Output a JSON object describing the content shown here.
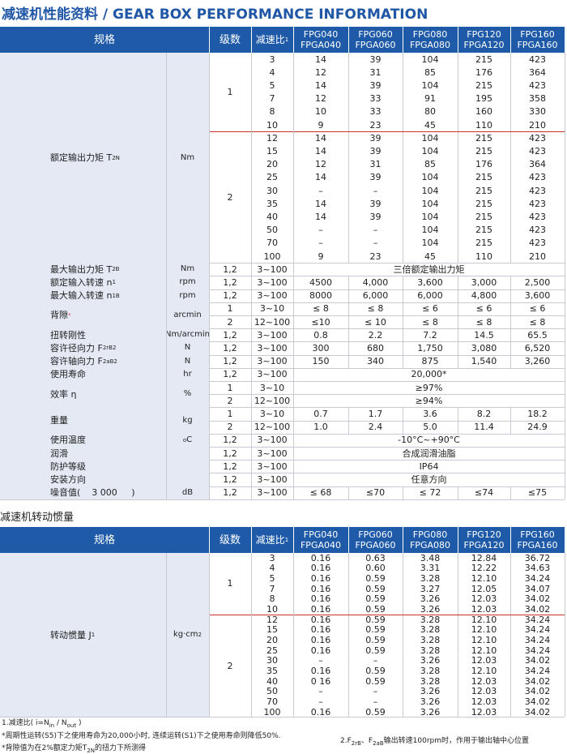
{
  "title": "减速机性能资料 / GEAR BOX PERFORMANCE INFORMATION",
  "performance_table": {
    "header": {
      "spec": "规格",
      "stage": "级数",
      "ratio": [
        {
          "text": "减速比"
        },
        {
          "sup": "1"
        }
      ],
      "models": [
        [
          "FPG040",
          "FPGA040"
        ],
        [
          "FPG060",
          "FPGA060"
        ],
        [
          "FPG080",
          "FPGA080"
        ],
        [
          "FPG120",
          "FPGA120"
        ],
        [
          "FPG160",
          "FPGA160"
        ]
      ]
    },
    "blocks": [
      {
        "label": [
          {
            "text": "额定输出力矩 T"
          },
          {
            "sub": "2N"
          }
        ],
        "unit": "Nm",
        "groups": [
          {
            "stage": "1",
            "rows": [
              {
                "ratio": "3",
                "values": [
                  "14",
                  "39",
                  "104",
                  "215",
                  "423"
                ]
              },
              {
                "ratio": "4",
                "values": [
                  "12",
                  "31",
                  "85",
                  "176",
                  "364"
                ]
              },
              {
                "ratio": "5",
                "values": [
                  "14",
                  "39",
                  "104",
                  "215",
                  "423"
                ]
              },
              {
                "ratio": "7",
                "values": [
                  "12",
                  "33",
                  "91",
                  "195",
                  "358"
                ]
              },
              {
                "ratio": "8",
                "values": [
                  "10",
                  "33",
                  "80",
                  "160",
                  "330"
                ]
              },
              {
                "ratio": "10",
                "values": [
                  "9",
                  "23",
                  "45",
                  "110",
                  "210"
                ]
              }
            ]
          },
          {
            "stage": "2",
            "rows": [
              {
                "ratio": "12",
                "values": [
                  "14",
                  "39",
                  "104",
                  "215",
                  "423"
                ]
              },
              {
                "ratio": "15",
                "values": [
                  "14",
                  "39",
                  "104",
                  "215",
                  "423"
                ]
              },
              {
                "ratio": "20",
                "values": [
                  "12",
                  "31",
                  "85",
                  "176",
                  "364"
                ]
              },
              {
                "ratio": "25",
                "values": [
                  "14",
                  "39",
                  "104",
                  "215",
                  "423"
                ]
              },
              {
                "ratio": "30",
                "values": [
                  "–",
                  "–",
                  "104",
                  "215",
                  "423"
                ]
              },
              {
                "ratio": "35",
                "values": [
                  "14",
                  "39",
                  "104",
                  "215",
                  "423"
                ]
              },
              {
                "ratio": "40",
                "values": [
                  "14",
                  "39",
                  "104",
                  "215",
                  "423"
                ]
              },
              {
                "ratio": "50",
                "values": [
                  "–",
                  "–",
                  "104",
                  "215",
                  "423"
                ]
              },
              {
                "ratio": "70",
                "values": [
                  "–",
                  "–",
                  "104",
                  "215",
                  "423"
                ]
              },
              {
                "ratio": "100",
                "values": [
                  "9",
                  "23",
                  "45",
                  "110",
                  "210"
                ]
              }
            ]
          }
        ]
      },
      {
        "label": [
          {
            "text": "最大输出力矩 T"
          },
          {
            "sub": "2B"
          }
        ],
        "unit": "Nm",
        "groups": [
          {
            "stage": "1,2",
            "rows": [
              {
                "ratio": "3~100",
                "values": [
                  "三倍额定输出力矩"
                ]
              }
            ]
          }
        ]
      },
      {
        "label": [
          {
            "text": "额定输入转速 n"
          },
          {
            "sub": "1"
          }
        ],
        "unit": "rpm",
        "groups": [
          {
            "stage": "1,2",
            "rows": [
              {
                "ratio": "3~100",
                "values": [
                  "4500",
                  "4,000",
                  "3,600",
                  "3,000",
                  "2,500"
                ]
              }
            ]
          }
        ]
      },
      {
        "label": [
          {
            "text": "最大输入转速 n"
          },
          {
            "sub": "1B"
          }
        ],
        "unit": "rpm",
        "groups": [
          {
            "stage": "1,2",
            "rows": [
              {
                "ratio": "3~100",
                "values": [
                  "8000",
                  "6,000",
                  "6,000",
                  "4,800",
                  "3,600"
                ]
              }
            ]
          }
        ]
      },
      {
        "label": [
          {
            "text": "背隙"
          },
          {
            "sup": "*"
          }
        ],
        "unit": "arcmin",
        "groups": [
          {
            "stage": "1",
            "rows": [
              {
                "ratio": "3~10",
                "values": [
                  "≤ 8",
                  "≤ 8",
                  "≤ 6",
                  "≤ 6",
                  "≤ 6"
                ]
              }
            ]
          },
          {
            "stage": "2",
            "rows": [
              {
                "ratio": "12~100",
                "values": [
                  "≤10",
                  "≤ 10",
                  "≤ 8",
                  "≤ 8",
                  "≤ 8"
                ]
              }
            ]
          }
        ]
      },
      {
        "label": [
          {
            "text": "扭转刚性"
          }
        ],
        "unit": "Nm/arcmin",
        "groups": [
          {
            "stage": "1,2",
            "rows": [
              {
                "ratio": "3~100",
                "values": [
                  "0.8",
                  "2.2",
                  "7.2",
                  "14.5",
                  "65.5"
                ]
              }
            ]
          }
        ]
      },
      {
        "label": [
          {
            "text": "容许径向力 F"
          },
          {
            "sub": "2rB"
          },
          {
            "sup": "2"
          }
        ],
        "unit": "N",
        "groups": [
          {
            "stage": "1,2",
            "rows": [
              {
                "ratio": "3~100",
                "values": [
                  "300",
                  "680",
                  "1,750",
                  "3,080",
                  "6,520"
                ]
              }
            ]
          }
        ]
      },
      {
        "label": [
          {
            "text": "容许轴向力 F"
          },
          {
            "sub": "2aB"
          },
          {
            "sup": "2"
          }
        ],
        "unit": "N",
        "groups": [
          {
            "stage": "1,2",
            "rows": [
              {
                "ratio": "3~100",
                "values": [
                  "150",
                  "340",
                  "875",
                  "1,540",
                  "3,260"
                ]
              }
            ]
          }
        ]
      },
      {
        "label": [
          {
            "text": "使用寿命"
          }
        ],
        "unit": "hr",
        "groups": [
          {
            "stage": "1,2",
            "rows": [
              {
                "ratio": "3~100",
                "values": [
                  "20,000*"
                ]
              }
            ]
          }
        ]
      },
      {
        "label": [
          {
            "text": "效率 η"
          }
        ],
        "unit": "%",
        "groups": [
          {
            "stage": "1",
            "rows": [
              {
                "ratio": "3~10",
                "values": [
                  "≥97%"
                ]
              }
            ]
          },
          {
            "stage": "2",
            "rows": [
              {
                "ratio": "12~100",
                "values": [
                  "≥94%"
                ]
              }
            ]
          }
        ]
      },
      {
        "label": [
          {
            "text": "重量"
          }
        ],
        "unit": "kg",
        "groups": [
          {
            "stage": "1",
            "rows": [
              {
                "ratio": "3~10",
                "values": [
                  "0.7",
                  "1.7",
                  "3.6",
                  "8.2",
                  "18.2"
                ]
              }
            ]
          },
          {
            "stage": "2",
            "rows": [
              {
                "ratio": "12~100",
                "values": [
                  "1.0",
                  "2.4",
                  "5.0",
                  "11.4",
                  "24.9"
                ]
              }
            ]
          }
        ]
      },
      {
        "label": [
          {
            "text": "使用温度"
          }
        ],
        "unit": [
          {
            "sup": "o"
          },
          {
            "text": "C"
          }
        ],
        "groups": [
          {
            "stage": "1,2",
            "rows": [
              {
                "ratio": "3~100",
                "values": [
                  "-10°C~+90°C"
                ]
              }
            ]
          }
        ]
      },
      {
        "label": [
          {
            "text": "润滑"
          }
        ],
        "groups": [
          {
            "stage": "1,2",
            "rows": [
              {
                "ratio": "3~100",
                "values": [
                  "合成润滑油脂"
                ]
              }
            ]
          }
        ]
      },
      {
        "label": [
          {
            "text": "防护等级"
          }
        ],
        "groups": [
          {
            "stage": "1,2",
            "rows": [
              {
                "ratio": "3~100",
                "values": [
                  "IP64"
                ]
              }
            ]
          }
        ]
      },
      {
        "label": [
          {
            "text": "安装方向"
          }
        ],
        "groups": [
          {
            "stage": "1,2",
            "rows": [
              {
                "ratio": "3~100",
                "values": [
                  "任意方向"
                ]
              }
            ]
          }
        ]
      },
      {
        "label": [
          {
            "text": "噪音值(    3 000     )"
          }
        ],
        "unit": "dB",
        "groups": [
          {
            "stage": "1,2",
            "rows": [
              {
                "ratio": "3~100",
                "values": [
                  "≤ 68",
                  "≤70",
                  "≤ 72",
                  "≤74",
                  "≤75"
                ]
              }
            ]
          }
        ]
      }
    ]
  },
  "inertia_title": "减速机转动惯量",
  "inertia_table": {
    "header": {
      "spec": "规格",
      "stage": "级数",
      "ratio": [
        {
          "text": "减速比"
        },
        {
          "sup": "1"
        }
      ],
      "models": [
        [
          "FPG040",
          "FPGA040"
        ],
        [
          "FPG060",
          "FPGA060"
        ],
        [
          "FPG080",
          "FPGA080"
        ],
        [
          "FPG120",
          "FPGA120"
        ],
        [
          "FPG160",
          "FPGA160"
        ]
      ]
    },
    "blocks": [
      {
        "label": [
          {
            "text": "转动惯量 J"
          },
          {
            "sub": "1"
          }
        ],
        "unit": [
          {
            "text": "kg·cm"
          },
          {
            "sup": "2"
          }
        ],
        "groups": [
          {
            "stage": "1",
            "rows": [
              {
                "ratio": "3",
                "values": [
                  "0.16",
                  "0.63",
                  "3.48",
                  "12.84",
                  "36.72"
                ]
              },
              {
                "ratio": "4",
                "values": [
                  "0.16",
                  "0.60",
                  "3.31",
                  "12.22",
                  "34.63"
                ]
              },
              {
                "ratio": "5",
                "values": [
                  "0.16",
                  "0.59",
                  "3.28",
                  "12.10",
                  "34.24"
                ]
              },
              {
                "ratio": "7",
                "values": [
                  "0.16",
                  "0.59",
                  "3.27",
                  "12.05",
                  "34.07"
                ]
              },
              {
                "ratio": "8",
                "values": [
                  "0.16",
                  "0.59",
                  "3.26",
                  "12.03",
                  "34.02"
                ]
              },
              {
                "ratio": "10",
                "values": [
                  "0.16",
                  "0.59",
                  "3.26",
                  "12.03",
                  "34.02"
                ]
              }
            ]
          },
          {
            "stage": "2",
            "rows": [
              {
                "ratio": "12",
                "values": [
                  "0.16",
                  "0.59",
                  "3.28",
                  "12.10",
                  "34.24"
                ]
              },
              {
                "ratio": "15",
                "values": [
                  "0.16",
                  "0.59",
                  "3.28",
                  "12.10",
                  "34.24"
                ]
              },
              {
                "ratio": "20",
                "values": [
                  "0.16",
                  "0.59",
                  "3.28",
                  "12.10",
                  "34.24"
                ]
              },
              {
                "ratio": "25",
                "values": [
                  "0.16",
                  "0.59",
                  "3.28",
                  "12.10",
                  "34.24"
                ]
              },
              {
                "ratio": "30",
                "values": [
                  "–",
                  "–",
                  "3.26",
                  "12.03",
                  "34.02"
                ]
              },
              {
                "ratio": "35",
                "values": [
                  "0.16",
                  "0.59",
                  "3.28",
                  "12.10",
                  "34.24"
                ]
              },
              {
                "ratio": "40",
                "values": [
                  "0 16",
                  "0.59",
                  "3.28",
                  "12.03",
                  "34.02"
                ]
              },
              {
                "ratio": "50",
                "values": [
                  "–",
                  "–",
                  "3.26",
                  "12.03",
                  "34.02"
                ]
              },
              {
                "ratio": "70",
                "values": [
                  "–",
                  "–",
                  "3.26",
                  "12.03",
                  "34.02"
                ]
              },
              {
                "ratio": "100",
                "values": [
                  "0.16",
                  "0.59",
                  "3.26",
                  "12.03",
                  "34.02"
                ]
              }
            ]
          }
        ]
      }
    ]
  },
  "footnotes": [
    [
      {
        "text": "1.减速比( i=N"
      },
      {
        "sub": "in"
      },
      {
        "text": " / N"
      },
      {
        "sub": "out"
      },
      {
        "text": " )"
      }
    ],
    [
      {
        "text": "*周期性运转(S5)下之使用寿命为20,000小时, 连续运转(S1)下之使用寿命则降低50%."
      }
    ],
    [
      {
        "text": "*背隙值为在2%额定力矩T"
      },
      {
        "sub": "2N"
      },
      {
        "text": "的扭力下所测得"
      }
    ],
    [
      {
        "text": "2.F"
      },
      {
        "sub": "2rB"
      },
      {
        "text": "、F"
      },
      {
        "sub": "2aB"
      },
      {
        "text": "输出转速100rpm时，作用于输出轴中心位置"
      }
    ]
  ]
}
